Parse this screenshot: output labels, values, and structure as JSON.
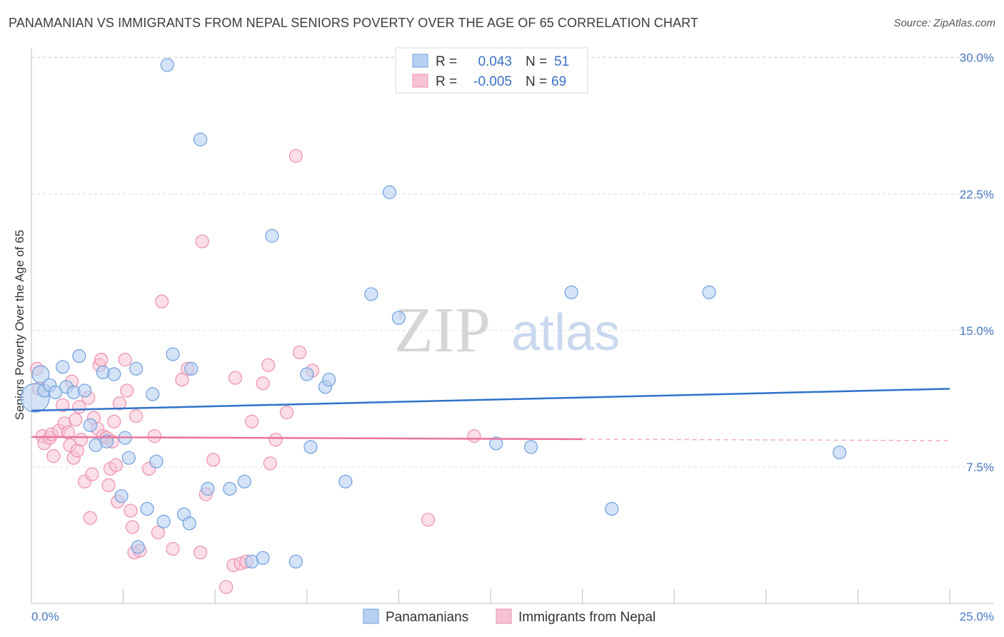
{
  "title": "PANAMANIAN VS IMMIGRANTS FROM NEPAL SENIORS POVERTY OVER THE AGE OF 65 CORRELATION CHART",
  "source": "Source: ZipAtlas.com",
  "watermark": {
    "zip": "ZIP",
    "atlas": "atlas"
  },
  "colors": {
    "blue_fill": "#b8d0f2",
    "blue_stroke": "#6f9fdc",
    "blue_line": "#2f72c9",
    "pink_fill": "#f7c3d3",
    "pink_stroke": "#ec8fad",
    "pink_line": "#e8739a",
    "tick_text": "#4a78c2",
    "grid": "#dcdcdc"
  },
  "legend": {
    "rows": [
      {
        "r_label": "R =",
        "r_value": "0.043",
        "n_label": "N =",
        "n_value": "51"
      },
      {
        "r_label": "R =",
        "r_value": "-0.005",
        "n_label": "N =",
        "n_value": "69"
      }
    ]
  },
  "bottom_legend": [
    "Panamanians",
    "Immigrants from Nepal"
  ],
  "chart_data": {
    "type": "scatter",
    "title": "PANAMANIAN VS IMMIGRANTS FROM NEPAL SENIORS POVERTY OVER THE AGE OF 65 CORRELATION CHART",
    "xlabel": "",
    "ylabel": "Seniors Poverty Over the Age of 65",
    "xlim": [
      0,
      25
    ],
    "ylim": [
      0,
      30.5
    ],
    "x_tick_labels": [
      "0.0%",
      "25.0%"
    ],
    "y_ticks": [
      7.5,
      15.0,
      22.5,
      30.0
    ],
    "y_tick_labels": [
      "7.5%",
      "15.0%",
      "22.5%",
      "30.0%"
    ],
    "grid": "horizontal dashed",
    "legend_position": "top-center",
    "series": [
      {
        "name": "Panamanians",
        "points": [
          [
            0.1,
            11.3
          ],
          [
            0.25,
            12.6
          ],
          [
            0.35,
            11.7
          ],
          [
            0.5,
            12.0
          ],
          [
            0.65,
            11.6
          ],
          [
            0.85,
            13.0
          ],
          [
            0.95,
            11.9
          ],
          [
            1.15,
            11.6
          ],
          [
            1.3,
            13.6
          ],
          [
            1.45,
            11.7
          ],
          [
            1.6,
            9.8
          ],
          [
            1.75,
            8.7
          ],
          [
            1.95,
            12.7
          ],
          [
            2.05,
            8.9
          ],
          [
            2.25,
            12.6
          ],
          [
            2.45,
            5.9
          ],
          [
            2.55,
            9.1
          ],
          [
            2.65,
            8.0
          ],
          [
            2.85,
            12.9
          ],
          [
            2.9,
            3.1
          ],
          [
            3.15,
            5.2
          ],
          [
            3.3,
            11.5
          ],
          [
            3.4,
            7.8
          ],
          [
            3.6,
            4.5
          ],
          [
            3.7,
            29.6
          ],
          [
            3.85,
            13.7
          ],
          [
            4.15,
            4.9
          ],
          [
            4.3,
            4.4
          ],
          [
            4.35,
            12.9
          ],
          [
            4.6,
            25.5
          ],
          [
            4.8,
            6.3
          ],
          [
            5.4,
            6.3
          ],
          [
            5.8,
            6.7
          ],
          [
            6.0,
            2.3
          ],
          [
            6.3,
            2.5
          ],
          [
            6.55,
            20.2
          ],
          [
            7.2,
            2.3
          ],
          [
            7.5,
            12.6
          ],
          [
            7.6,
            8.6
          ],
          [
            8.0,
            11.9
          ],
          [
            8.1,
            12.3
          ],
          [
            8.55,
            6.7
          ],
          [
            9.25,
            17.0
          ],
          [
            9.75,
            22.6
          ],
          [
            10.0,
            15.7
          ],
          [
            12.65,
            8.8
          ],
          [
            13.6,
            8.6
          ],
          [
            14.7,
            17.1
          ],
          [
            15.8,
            5.2
          ],
          [
            18.45,
            17.1
          ],
          [
            22.0,
            8.3
          ]
        ],
        "trend": {
          "x": [
            0,
            25
          ],
          "y": [
            10.6,
            11.8
          ]
        }
      },
      {
        "name": "Immigrants from Nepal",
        "points": [
          [
            0.15,
            12.9
          ],
          [
            0.2,
            11.8
          ],
          [
            0.3,
            9.2
          ],
          [
            0.35,
            8.8
          ],
          [
            0.5,
            9.1
          ],
          [
            0.55,
            9.3
          ],
          [
            0.6,
            8.1
          ],
          [
            0.75,
            9.5
          ],
          [
            0.85,
            10.9
          ],
          [
            0.9,
            9.9
          ],
          [
            1.0,
            9.4
          ],
          [
            1.05,
            8.7
          ],
          [
            1.1,
            12.2
          ],
          [
            1.15,
            8.0
          ],
          [
            1.2,
            10.1
          ],
          [
            1.25,
            8.4
          ],
          [
            1.3,
            10.8
          ],
          [
            1.35,
            9.0
          ],
          [
            1.45,
            6.7
          ],
          [
            1.55,
            11.3
          ],
          [
            1.6,
            4.7
          ],
          [
            1.65,
            7.1
          ],
          [
            1.7,
            10.2
          ],
          [
            1.8,
            9.6
          ],
          [
            1.85,
            13.1
          ],
          [
            1.9,
            13.4
          ],
          [
            1.95,
            9.2
          ],
          [
            2.05,
            9.1
          ],
          [
            2.1,
            6.5
          ],
          [
            2.15,
            7.4
          ],
          [
            2.2,
            8.9
          ],
          [
            2.25,
            10.0
          ],
          [
            2.3,
            7.6
          ],
          [
            2.35,
            5.6
          ],
          [
            2.4,
            11.0
          ],
          [
            2.55,
            13.4
          ],
          [
            2.6,
            11.7
          ],
          [
            2.7,
            5.1
          ],
          [
            2.75,
            4.2
          ],
          [
            2.8,
            2.8
          ],
          [
            2.85,
            10.3
          ],
          [
            2.95,
            2.9
          ],
          [
            3.2,
            7.4
          ],
          [
            3.35,
            9.2
          ],
          [
            3.45,
            3.9
          ],
          [
            3.55,
            16.6
          ],
          [
            3.85,
            3.0
          ],
          [
            4.1,
            12.3
          ],
          [
            4.25,
            12.9
          ],
          [
            4.6,
            2.8
          ],
          [
            4.65,
            19.9
          ],
          [
            4.75,
            6.0
          ],
          [
            4.95,
            7.9
          ],
          [
            5.3,
            0.9
          ],
          [
            5.5,
            2.1
          ],
          [
            5.55,
            12.4
          ],
          [
            5.7,
            2.2
          ],
          [
            5.85,
            2.3
          ],
          [
            6.0,
            10.0
          ],
          [
            6.3,
            12.1
          ],
          [
            6.45,
            13.1
          ],
          [
            6.5,
            7.7
          ],
          [
            6.65,
            9.0
          ],
          [
            6.95,
            10.5
          ],
          [
            7.2,
            24.6
          ],
          [
            7.3,
            13.8
          ],
          [
            7.65,
            12.8
          ],
          [
            10.8,
            4.6
          ],
          [
            12.05,
            9.2
          ]
        ],
        "trend": {
          "x": [
            0,
            25
          ],
          "y": [
            9.15,
            8.95
          ],
          "solid_until_x": 15.0
        }
      }
    ]
  }
}
